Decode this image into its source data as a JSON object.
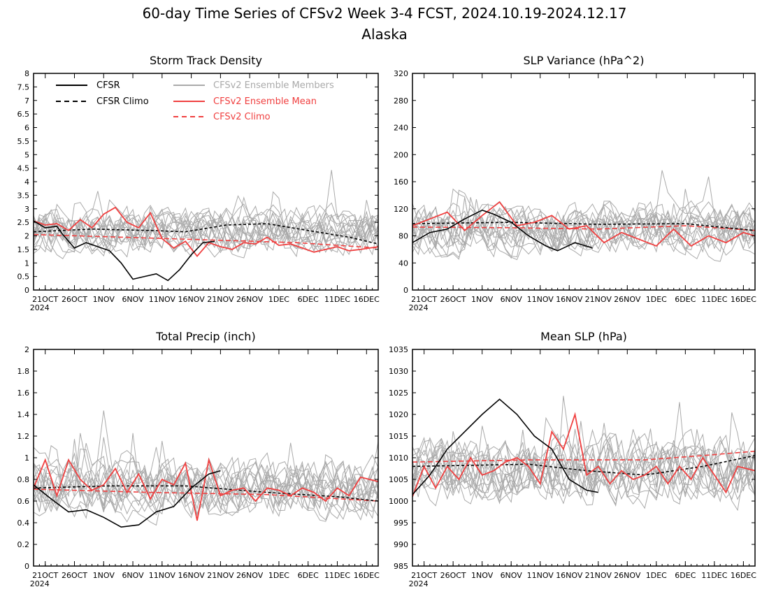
{
  "figure": {
    "title_line1": "60-day Time Series of CFSv2 Week 3-4 FCST, 2024.10.19-2024.12.17",
    "title_line2": "Alaska"
  },
  "colors": {
    "cfsr": "#000000",
    "cfsr_climo": "#000000",
    "ensemble_members": "#aaaaaa",
    "ensemble_mean": "#f04040",
    "cfsv2_climo": "#f04040"
  },
  "legend": {
    "cfsr": "CFSR",
    "cfsr_climo": "CFSR Climo",
    "members": "CFSv2 Ensemble Members",
    "ens_mean": "CFSv2 Ensemble Mean",
    "cfsv2_climo": "CFSv2 Climo"
  },
  "chart_data": [
    {
      "type": "line",
      "title": "Storm Track Density",
      "x_start": "2024-10-19",
      "x_end": "2024-12-17",
      "x_tick_labels": [
        "21OCT",
        "26OCT",
        "1NOV",
        "6NOV",
        "11NOV",
        "16NOV",
        "21NOV",
        "26NOV",
        "1DEC",
        "6DEC",
        "11DEC",
        "16DEC"
      ],
      "x_year_label": "2024",
      "ylim": [
        0,
        8
      ],
      "y_ticks": [
        "0",
        "0.5",
        "1",
        "1.5",
        "2",
        "2.5",
        "3",
        "3.5",
        "4",
        "4.5",
        "5",
        "5.5",
        "6",
        "6.5",
        "7",
        "7.5",
        "8"
      ],
      "members_spread": {
        "center": 2.2,
        "amplitude": 0.9
      },
      "series": [
        {
          "name": "CFSR",
          "role": "cfsr",
          "x": [
            "2024-10-19",
            "2024-10-21",
            "2024-10-23",
            "2024-10-24",
            "2024-10-26",
            "2024-10-28",
            "2024-10-30",
            "2024-11-01",
            "2024-11-03",
            "2024-11-05",
            "2024-11-07",
            "2024-11-09",
            "2024-11-11",
            "2024-11-13",
            "2024-11-15",
            "2024-11-17",
            "2024-11-19"
          ],
          "y": [
            2.55,
            2.3,
            2.35,
            2.05,
            1.55,
            1.75,
            1.6,
            1.45,
            1.0,
            0.4,
            0.5,
            0.6,
            0.35,
            0.75,
            1.3,
            1.75,
            1.8
          ]
        },
        {
          "name": "CFSR Climo",
          "role": "cfsr_climo",
          "x": [
            "2024-10-19",
            "2024-10-29",
            "2024-11-08",
            "2024-11-14",
            "2024-11-21",
            "2024-11-28",
            "2024-12-05",
            "2024-12-12",
            "2024-12-17"
          ],
          "y": [
            2.15,
            2.25,
            2.2,
            2.15,
            2.4,
            2.45,
            2.2,
            1.95,
            1.7
          ]
        },
        {
          "name": "CFSv2 Climo",
          "role": "cfsv2_climo",
          "x": [
            "2024-10-19",
            "2024-11-03",
            "2024-11-18",
            "2024-12-03",
            "2024-12-17"
          ],
          "y": [
            2.05,
            1.95,
            1.85,
            1.75,
            1.55
          ]
        },
        {
          "name": "CFSv2 Ensemble Mean",
          "role": "ens_mean",
          "x": [
            "2024-10-19",
            "2024-10-21",
            "2024-10-23",
            "2024-10-25",
            "2024-10-27",
            "2024-10-29",
            "2024-10-31",
            "2024-11-02",
            "2024-11-04",
            "2024-11-06",
            "2024-11-08",
            "2024-11-10",
            "2024-11-12",
            "2024-11-14",
            "2024-11-16",
            "2024-11-18",
            "2024-11-20",
            "2024-11-22",
            "2024-11-24",
            "2024-11-26",
            "2024-11-28",
            "2024-11-30",
            "2024-12-02",
            "2024-12-04",
            "2024-12-06",
            "2024-12-08",
            "2024-12-10",
            "2024-12-12",
            "2024-12-14",
            "2024-12-17"
          ],
          "y": [
            2.55,
            2.4,
            2.45,
            2.2,
            2.6,
            2.3,
            2.8,
            3.05,
            2.5,
            2.3,
            2.85,
            1.9,
            1.55,
            1.8,
            1.25,
            1.75,
            1.6,
            1.5,
            1.75,
            1.7,
            1.95,
            1.65,
            1.7,
            1.55,
            1.4,
            1.5,
            1.6,
            1.45,
            1.5,
            1.6
          ]
        }
      ]
    },
    {
      "type": "line",
      "title": "SLP Variance (hPa^2)",
      "x_start": "2024-10-19",
      "x_end": "2024-12-17",
      "x_tick_labels": [
        "21OCT",
        "26OCT",
        "1NOV",
        "6NOV",
        "11NOV",
        "16NOV",
        "21NOV",
        "26NOV",
        "1DEC",
        "6DEC",
        "11DEC",
        "16DEC"
      ],
      "x_year_label": "2024",
      "ylim": [
        0,
        320
      ],
      "y_ticks": [
        "0",
        "40",
        "80",
        "120",
        "160",
        "200",
        "240",
        "280",
        "320"
      ],
      "members_spread": {
        "center": 88,
        "amplitude": 38
      },
      "series": [
        {
          "name": "CFSR",
          "role": "cfsr",
          "x": [
            "2024-10-19",
            "2024-10-22",
            "2024-10-25",
            "2024-10-28",
            "2024-10-31",
            "2024-11-02",
            "2024-11-05",
            "2024-11-08",
            "2024-11-11",
            "2024-11-13",
            "2024-11-16",
            "2024-11-19"
          ],
          "y": [
            70,
            85,
            90,
            105,
            118,
            112,
            100,
            80,
            65,
            58,
            70,
            62
          ]
        },
        {
          "name": "CFSR Climo",
          "role": "cfsr_climo",
          "x": [
            "2024-10-19",
            "2024-11-05",
            "2024-11-20",
            "2024-12-05",
            "2024-12-17"
          ],
          "y": [
            98,
            100,
            97,
            98,
            88
          ]
        },
        {
          "name": "CFSv2 Climo",
          "role": "cfsv2_climo",
          "x": [
            "2024-10-19",
            "2024-11-05",
            "2024-11-20",
            "2024-12-05",
            "2024-12-17"
          ],
          "y": [
            93,
            92,
            90,
            95,
            88
          ]
        },
        {
          "name": "CFSv2 Ensemble Mean",
          "role": "ens_mean",
          "x": [
            "2024-10-19",
            "2024-10-22",
            "2024-10-25",
            "2024-10-28",
            "2024-10-31",
            "2024-11-03",
            "2024-11-06",
            "2024-11-09",
            "2024-11-12",
            "2024-11-15",
            "2024-11-18",
            "2024-11-21",
            "2024-11-24",
            "2024-11-27",
            "2024-11-30",
            "2024-12-03",
            "2024-12-06",
            "2024-12-09",
            "2024-12-12",
            "2024-12-15",
            "2024-12-17"
          ],
          "y": [
            95,
            105,
            115,
            88,
            110,
            130,
            95,
            100,
            110,
            90,
            95,
            70,
            85,
            75,
            65,
            90,
            65,
            80,
            70,
            85,
            80
          ]
        }
      ]
    },
    {
      "type": "line",
      "title": "Total Precip (inch)",
      "x_start": "2024-10-19",
      "x_end": "2024-12-17",
      "x_tick_labels": [
        "21OCT",
        "26OCT",
        "1NOV",
        "6NOV",
        "11NOV",
        "16NOV",
        "21NOV",
        "26NOV",
        "1DEC",
        "6DEC",
        "11DEC",
        "16DEC"
      ],
      "x_year_label": "2024",
      "ylim": [
        0,
        2
      ],
      "y_ticks": [
        "0",
        "0.2",
        "0.4",
        "0.6",
        "0.8",
        "1",
        "1.2",
        "1.4",
        "1.6",
        "1.8",
        "2"
      ],
      "members_spread": {
        "center": 0.72,
        "amplitude": 0.28
      },
      "series": [
        {
          "name": "CFSR",
          "role": "cfsr",
          "x": [
            "2024-10-19",
            "2024-10-22",
            "2024-10-25",
            "2024-10-28",
            "2024-10-31",
            "2024-11-03",
            "2024-11-06",
            "2024-11-09",
            "2024-11-12",
            "2024-11-15",
            "2024-11-18",
            "2024-11-20"
          ],
          "y": [
            0.75,
            0.62,
            0.5,
            0.52,
            0.45,
            0.36,
            0.38,
            0.5,
            0.55,
            0.72,
            0.85,
            0.88
          ]
        },
        {
          "name": "CFSR Climo",
          "role": "cfsr_climo",
          "x": [
            "2024-10-19",
            "2024-11-01",
            "2024-11-14",
            "2024-11-28",
            "2024-12-10",
            "2024-12-17"
          ],
          "y": [
            0.72,
            0.74,
            0.74,
            0.68,
            0.64,
            0.6
          ]
        },
        {
          "name": "CFSv2 Climo",
          "role": "cfsv2_climo",
          "x": [
            "2024-10-19",
            "2024-11-08",
            "2024-11-28",
            "2024-12-17"
          ],
          "y": [
            0.71,
            0.68,
            0.66,
            0.6
          ]
        },
        {
          "name": "CFSv2 Ensemble Mean",
          "role": "ens_mean",
          "x": [
            "2024-10-19",
            "2024-10-21",
            "2024-10-23",
            "2024-10-25",
            "2024-10-27",
            "2024-10-29",
            "2024-10-31",
            "2024-11-02",
            "2024-11-04",
            "2024-11-06",
            "2024-11-08",
            "2024-11-10",
            "2024-11-12",
            "2024-11-14",
            "2024-11-16",
            "2024-11-18",
            "2024-11-20",
            "2024-11-22",
            "2024-11-24",
            "2024-11-26",
            "2024-11-28",
            "2024-11-30",
            "2024-12-02",
            "2024-12-04",
            "2024-12-06",
            "2024-12-08",
            "2024-12-10",
            "2024-12-12",
            "2024-12-14",
            "2024-12-17"
          ],
          "y": [
            0.72,
            0.98,
            0.65,
            0.98,
            0.8,
            0.7,
            0.75,
            0.9,
            0.68,
            0.85,
            0.62,
            0.8,
            0.75,
            0.95,
            0.42,
            0.98,
            0.65,
            0.7,
            0.72,
            0.6,
            0.72,
            0.7,
            0.65,
            0.72,
            0.68,
            0.6,
            0.72,
            0.65,
            0.82,
            0.78
          ]
        }
      ]
    },
    {
      "type": "line",
      "title": "Mean SLP (hPa)",
      "x_start": "2024-10-19",
      "x_end": "2024-12-17",
      "x_tick_labels": [
        "21OCT",
        "26OCT",
        "1NOV",
        "6NOV",
        "11NOV",
        "16NOV",
        "21NOV",
        "26NOV",
        "1DEC",
        "6DEC",
        "11DEC",
        "16DEC"
      ],
      "x_year_label": "2024",
      "ylim": [
        985,
        1035
      ],
      "y_ticks": [
        "985",
        "990",
        "995",
        "1000",
        "1005",
        "1010",
        "1015",
        "1020",
        "1025",
        "1030",
        "1035"
      ],
      "members_spread": {
        "center": 1007,
        "amplitude": 8
      },
      "series": [
        {
          "name": "CFSR",
          "role": "cfsr",
          "x": [
            "2024-10-19",
            "2024-10-22",
            "2024-10-25",
            "2024-10-28",
            "2024-10-31",
            "2024-11-03",
            "2024-11-06",
            "2024-11-09",
            "2024-11-12",
            "2024-11-15",
            "2024-11-18",
            "2024-11-20"
          ],
          "y": [
            1001.5,
            1006,
            1012,
            1016,
            1020,
            1023.5,
            1020,
            1015,
            1012,
            1005,
            1002.5,
            1002
          ]
        },
        {
          "name": "CFSR Climo",
          "role": "cfsr_climo",
          "x": [
            "2024-10-19",
            "2024-11-08",
            "2024-11-18",
            "2024-11-28",
            "2024-12-08",
            "2024-12-17"
          ],
          "y": [
            1008,
            1008.5,
            1007,
            1006,
            1008,
            1010.5
          ]
        },
        {
          "name": "CFSv2 Climo",
          "role": "cfsv2_climo",
          "x": [
            "2024-10-19",
            "2024-11-08",
            "2024-11-28",
            "2024-12-08",
            "2024-12-17"
          ],
          "y": [
            1009,
            1009.5,
            1009.5,
            1010.5,
            1011.5
          ]
        },
        {
          "name": "CFSv2 Ensemble Mean",
          "role": "ens_mean",
          "x": [
            "2024-10-19",
            "2024-10-21",
            "2024-10-23",
            "2024-10-25",
            "2024-10-27",
            "2024-10-29",
            "2024-10-31",
            "2024-11-02",
            "2024-11-04",
            "2024-11-06",
            "2024-11-08",
            "2024-11-10",
            "2024-11-12",
            "2024-11-14",
            "2024-11-16",
            "2024-11-18",
            "2024-11-20",
            "2024-11-22",
            "2024-11-24",
            "2024-11-26",
            "2024-11-28",
            "2024-11-30",
            "2024-12-02",
            "2024-12-04",
            "2024-12-06",
            "2024-12-08",
            "2024-12-10",
            "2024-12-12",
            "2024-12-14",
            "2024-12-17"
          ],
          "y": [
            1001,
            1008,
            1003,
            1008,
            1005,
            1010,
            1006,
            1007,
            1009,
            1010,
            1008,
            1004,
            1016,
            1012,
            1020,
            1006,
            1008,
            1004,
            1007,
            1005,
            1006,
            1008,
            1004,
            1008,
            1005,
            1010,
            1006,
            1002,
            1008,
            1007
          ]
        }
      ]
    }
  ]
}
